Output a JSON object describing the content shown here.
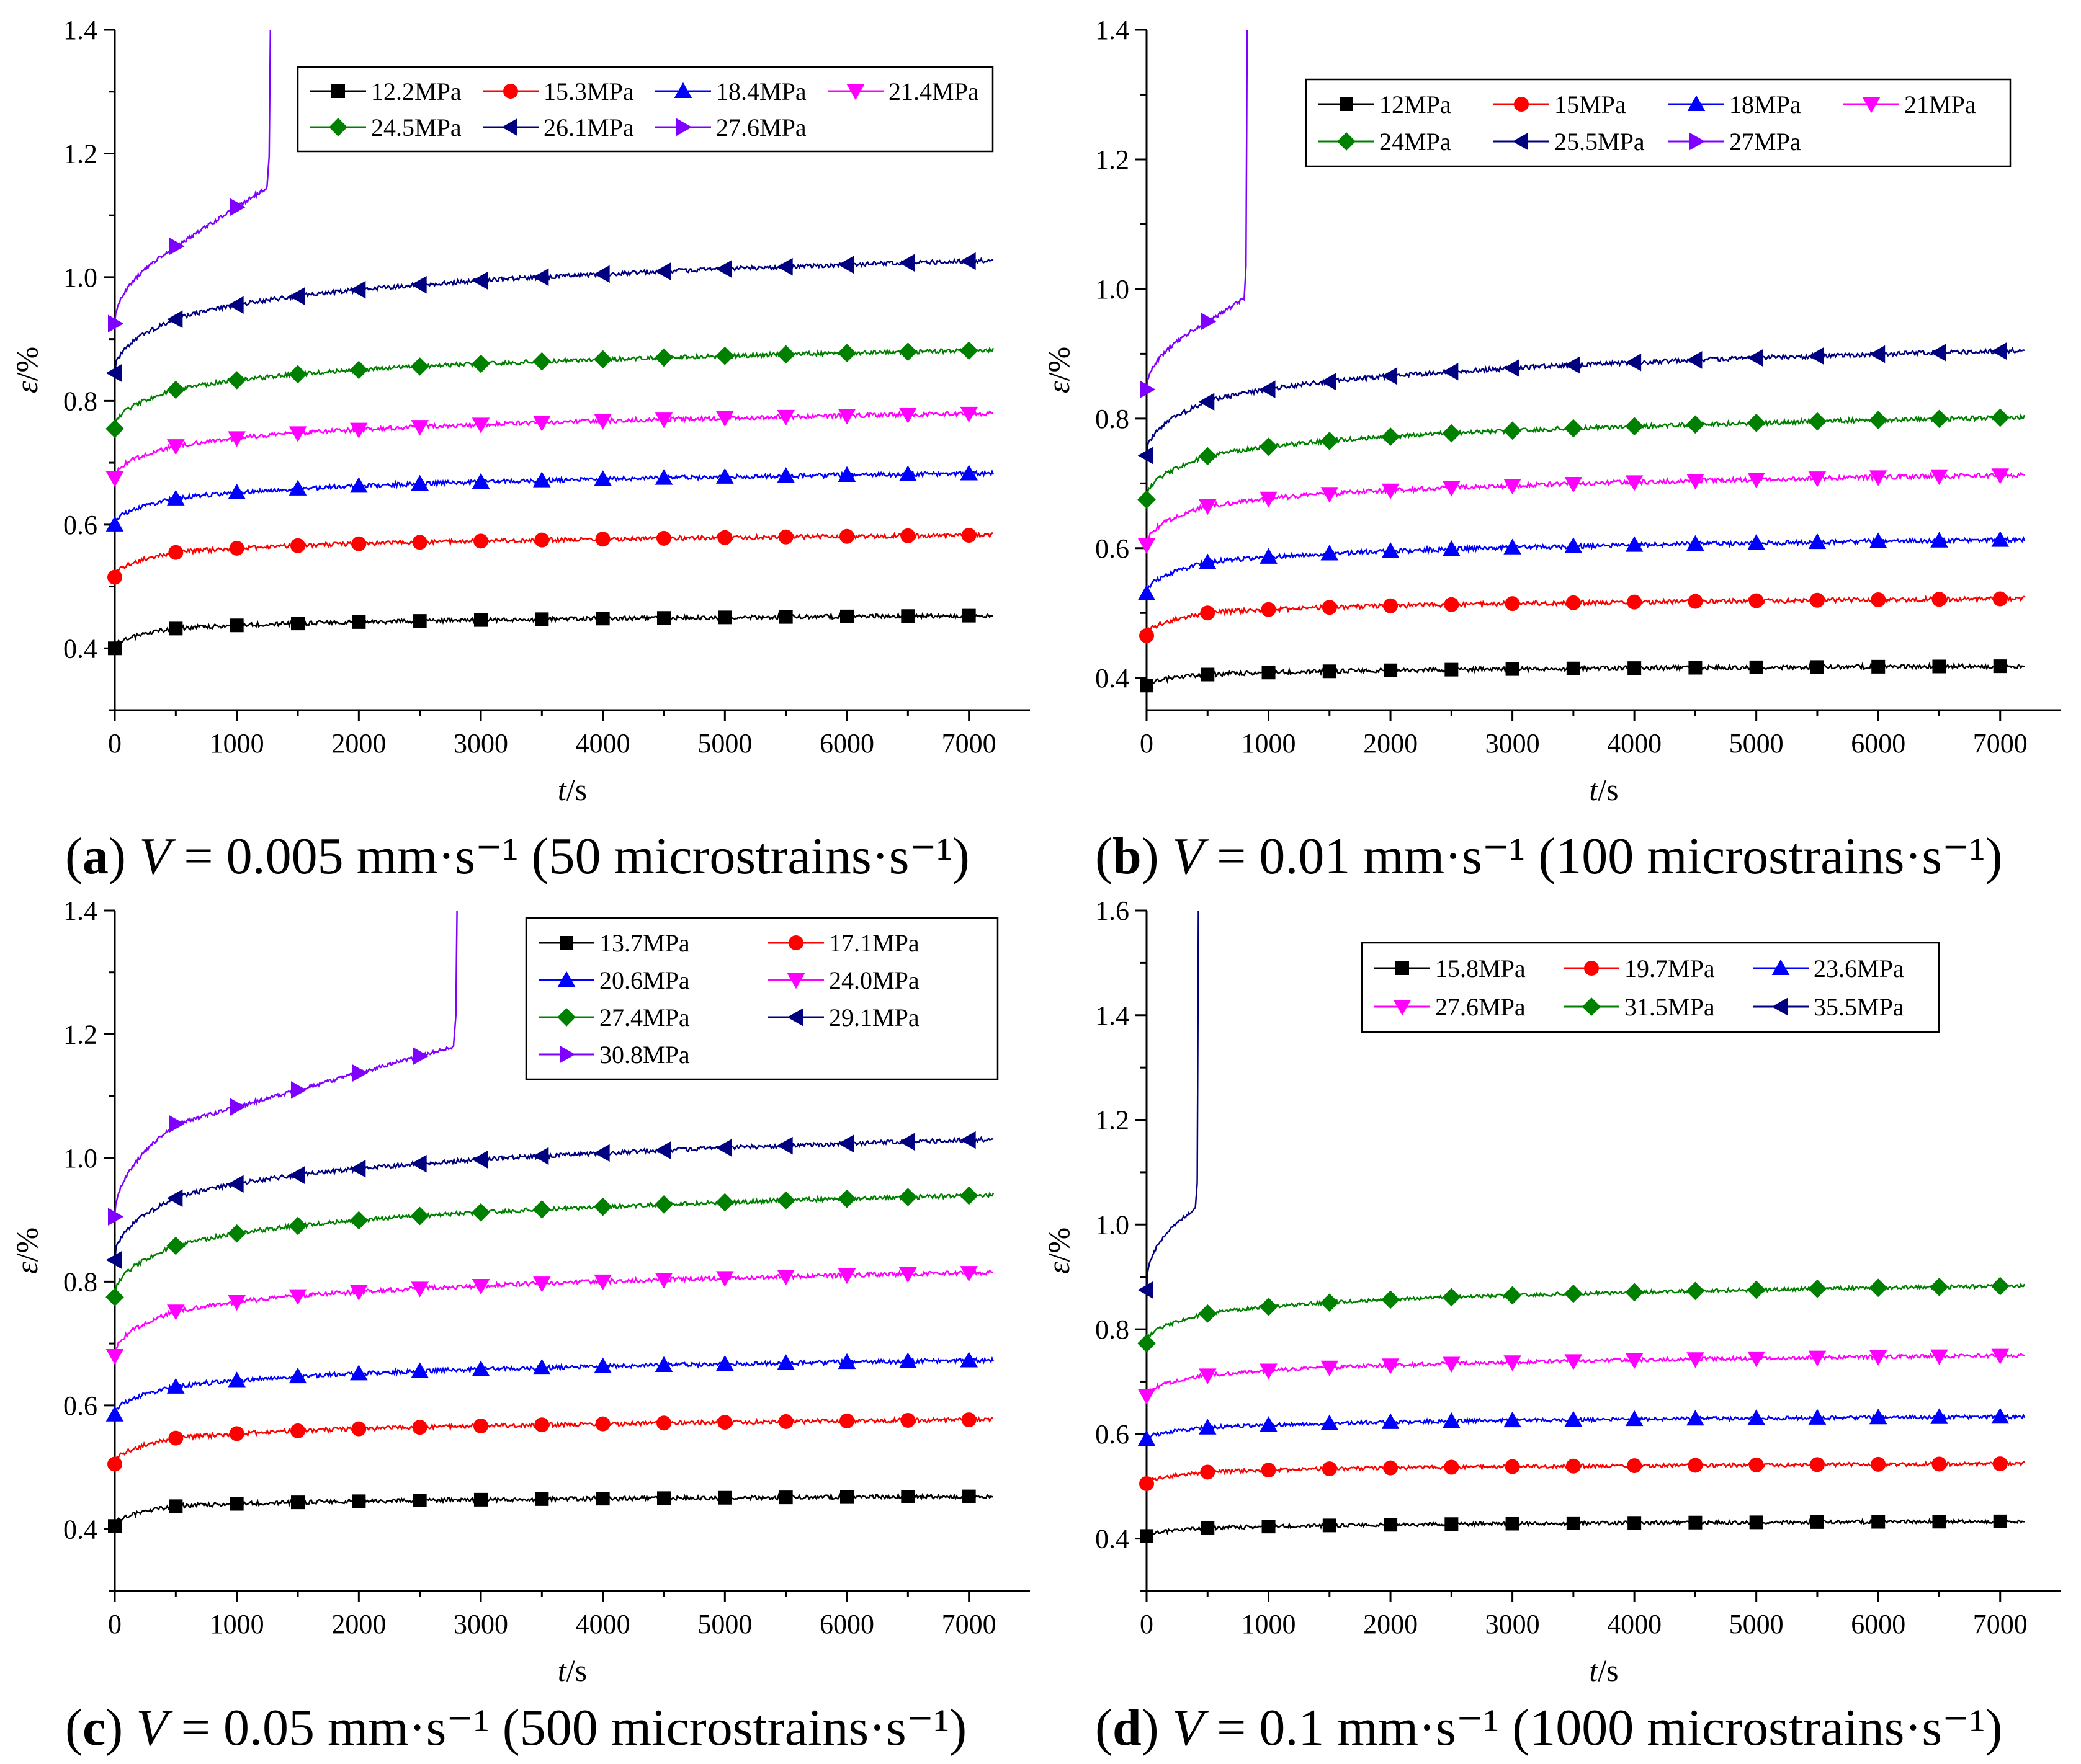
{
  "captions": [
    {
      "letter": "a",
      "var": "V",
      "eq": "= 0.005 mm·s⁻¹ (50 microstrains·s⁻¹)"
    },
    {
      "letter": "b",
      "var": "V",
      "eq": "= 0.01 mm·s⁻¹ (100 microstrains·s⁻¹)"
    },
    {
      "letter": "c",
      "var": "V",
      "eq": "= 0.05 mm·s⁻¹ (500 microstrains·s⁻¹)"
    },
    {
      "letter": "d",
      "var": "V",
      "eq": "= 0.1 mm·s⁻¹ (1000 microstrains·s⁻¹)"
    }
  ],
  "colors": {
    "black": "#000000",
    "red": "#ff0000",
    "blue": "#0000ff",
    "magenta": "#ff00ff",
    "green": "#008000",
    "navy": "#000080",
    "violet": "#8000ff"
  },
  "chart_data": [
    {
      "type": "line",
      "id": "a",
      "xlabel_var": "t",
      "xlabel_unit": "/s",
      "ylabel_var": "ε",
      "ylabel_unit": "/%",
      "xlim": [
        0,
        7500
      ],
      "ylim": [
        0.3,
        1.4
      ],
      "xticks": [
        0,
        1000,
        2000,
        3000,
        4000,
        5000,
        6000,
        7000
      ],
      "yticks": [
        0.4,
        0.6,
        0.8,
        1.0,
        1.2,
        1.4
      ],
      "ytick_labels": [
        "0.4",
        "0.6",
        "0.8",
        "1.0",
        "1.2",
        "1.4"
      ],
      "legend_columns": 4,
      "series": [
        {
          "name": "12.2MPa",
          "color": "#000000",
          "marker": "square",
          "y0": 0.4,
          "y1": 0.432,
          "yend": 0.453
        },
        {
          "name": "15.3MPa",
          "color": "#ff0000",
          "marker": "circle",
          "y0": 0.515,
          "y1": 0.555,
          "yend": 0.583
        },
        {
          "name": "18.4MPa",
          "color": "#0000ff",
          "marker": "triangle-up",
          "y0": 0.6,
          "y1": 0.642,
          "yend": 0.683
        },
        {
          "name": "21.4MPa",
          "color": "#ff00ff",
          "marker": "triangle-down",
          "y0": 0.675,
          "y1": 0.727,
          "yend": 0.78
        },
        {
          "name": "24.5MPa",
          "color": "#008000",
          "marker": "diamond",
          "y0": 0.755,
          "y1": 0.818,
          "yend": 0.882
        },
        {
          "name": "26.1MPa",
          "color": "#000080",
          "marker": "triangle-left",
          "y0": 0.845,
          "y1": 0.932,
          "yend": 1.027
        },
        {
          "name": "27.6MPa",
          "color": "#8000ff",
          "marker": "triangle-right",
          "y0": 0.925,
          "y1": 1.05,
          "ymid": 1.1,
          "tfail": 1250,
          "yfail": 1.145
        }
      ]
    },
    {
      "type": "line",
      "id": "b",
      "xlabel_var": "t",
      "xlabel_unit": "/s",
      "ylabel_var": "ε",
      "ylabel_unit": "/%",
      "xlim": [
        0,
        7500
      ],
      "ylim": [
        0.35,
        1.4
      ],
      "xticks": [
        0,
        1000,
        2000,
        3000,
        4000,
        5000,
        6000,
        7000
      ],
      "yticks": [
        0.4,
        0.6,
        0.8,
        1.0,
        1.2,
        1.4
      ],
      "ytick_labels": [
        "0.4",
        "0.6",
        "0.8",
        "1.0",
        "1.2",
        "1.4"
      ],
      "legend_columns": 4,
      "series": [
        {
          "name": "12MPa",
          "color": "#000000",
          "marker": "square",
          "y0": 0.388,
          "y1": 0.405,
          "yend": 0.418
        },
        {
          "name": "15MPa",
          "color": "#ff0000",
          "marker": "circle",
          "y0": 0.465,
          "y1": 0.5,
          "yend": 0.522
        },
        {
          "name": "18MPa",
          "color": "#0000ff",
          "marker": "triangle-up",
          "y0": 0.53,
          "y1": 0.578,
          "yend": 0.613
        },
        {
          "name": "21MPa",
          "color": "#ff00ff",
          "marker": "triangle-down",
          "y0": 0.605,
          "y1": 0.665,
          "yend": 0.713
        },
        {
          "name": "24MPa",
          "color": "#008000",
          "marker": "diamond",
          "y0": 0.675,
          "y1": 0.742,
          "yend": 0.802
        },
        {
          "name": "25.5MPa",
          "color": "#000080",
          "marker": "triangle-left",
          "y0": 0.743,
          "y1": 0.826,
          "yend": 0.905
        },
        {
          "name": "27MPa",
          "color": "#8000ff",
          "marker": "triangle-right",
          "y0": 0.845,
          "y1": 0.95,
          "ymid": 0.95,
          "tfail": 800,
          "yfail": 0.985
        }
      ]
    },
    {
      "type": "line",
      "id": "c",
      "xlabel_var": "t",
      "xlabel_unit": "/s",
      "ylabel_var": "ε",
      "ylabel_unit": "/%",
      "xlim": [
        0,
        7500
      ],
      "ylim": [
        0.3,
        1.4
      ],
      "xticks": [
        0,
        1000,
        2000,
        3000,
        4000,
        5000,
        6000,
        7000
      ],
      "yticks": [
        0.4,
        0.6,
        0.8,
        1.0,
        1.2,
        1.4
      ],
      "ytick_labels": [
        "0.4",
        "0.6",
        "0.8",
        "1.0",
        "1.2",
        "1.4"
      ],
      "legend_columns": 2,
      "series": [
        {
          "name": "13.7MPa",
          "color": "#000000",
          "marker": "square",
          "y0": 0.405,
          "y1": 0.437,
          "yend": 0.453
        },
        {
          "name": "17.1MPa",
          "color": "#ff0000",
          "marker": "circle",
          "y0": 0.505,
          "y1": 0.547,
          "yend": 0.577
        },
        {
          "name": "20.6MPa",
          "color": "#0000ff",
          "marker": "triangle-up",
          "y0": 0.585,
          "y1": 0.63,
          "yend": 0.673
        },
        {
          "name": "24.0MPa",
          "color": "#ff00ff",
          "marker": "triangle-down",
          "y0": 0.68,
          "y1": 0.752,
          "yend": 0.815
        },
        {
          "name": "27.4MPa",
          "color": "#008000",
          "marker": "diamond",
          "y0": 0.775,
          "y1": 0.858,
          "yend": 0.94
        },
        {
          "name": "29.1MPa",
          "color": "#000080",
          "marker": "triangle-left",
          "y0": 0.835,
          "y1": 0.935,
          "yend": 1.03
        },
        {
          "name": "30.8MPa",
          "color": "#8000ff",
          "marker": "triangle-right",
          "y0": 0.905,
          "y1": 1.055,
          "ymid": 1.165,
          "tfail": 2780,
          "yfail": 1.18
        }
      ]
    },
    {
      "type": "line",
      "id": "d",
      "xlabel_var": "t",
      "xlabel_unit": "/s",
      "ylabel_var": "ε",
      "ylabel_unit": "/%",
      "xlim": [
        0,
        7500
      ],
      "ylim": [
        0.3,
        1.6
      ],
      "xticks": [
        0,
        1000,
        2000,
        3000,
        4000,
        5000,
        6000,
        7000
      ],
      "yticks": [
        0.4,
        0.6,
        0.8,
        1.0,
        1.2,
        1.4,
        1.6
      ],
      "ytick_labels": [
        "0.4",
        "0.6",
        "0.8",
        "1.0",
        "1.2",
        "1.4",
        "1.6"
      ],
      "legend_columns": 3,
      "series": [
        {
          "name": "15.8MPa",
          "color": "#000000",
          "marker": "square",
          "y0": 0.405,
          "y1": 0.42,
          "yend": 0.433
        },
        {
          "name": "19.7MPa",
          "color": "#ff0000",
          "marker": "circle",
          "y0": 0.505,
          "y1": 0.527,
          "yend": 0.543
        },
        {
          "name": "23.6MPa",
          "color": "#0000ff",
          "marker": "triangle-up",
          "y0": 0.59,
          "y1": 0.612,
          "yend": 0.633
        },
        {
          "name": "27.6MPa",
          "color": "#ff00ff",
          "marker": "triangle-down",
          "y0": 0.673,
          "y1": 0.712,
          "yend": 0.75
        },
        {
          "name": "31.5MPa",
          "color": "#008000",
          "marker": "diamond",
          "y0": 0.773,
          "y1": 0.83,
          "yend": 0.883
        },
        {
          "name": "35.5MPa",
          "color": "#000080",
          "marker": "triangle-left",
          "y0": 0.875,
          "y1": 1.02,
          "ymid": 1.02,
          "tfail": 400,
          "yfail": 1.03
        }
      ]
    }
  ]
}
